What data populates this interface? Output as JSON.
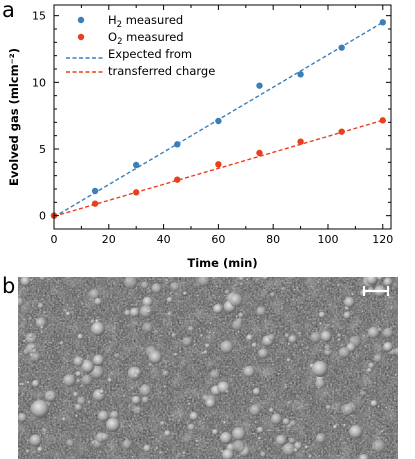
{
  "figure": {
    "panel_a_letter": "a",
    "panel_b_letter": "b"
  },
  "chart_data": {
    "type": "scatter",
    "title": "",
    "xlabel": "Time (min)",
    "ylabel": "Evolved gas (mlcm⁻²)",
    "xlim": [
      0,
      123
    ],
    "ylim": [
      -1,
      15.8
    ],
    "x_ticks": [
      0,
      20,
      40,
      60,
      80,
      100,
      120
    ],
    "y_ticks": [
      0,
      5,
      10,
      15
    ],
    "grid": false,
    "legend_position": "top-left",
    "series": [
      {
        "name": "H₂ measured",
        "mark": "point",
        "color": "#3b7fb8",
        "x": [
          0,
          15,
          30,
          45,
          60,
          75,
          90,
          105,
          120
        ],
        "y": [
          0.0,
          1.85,
          3.8,
          5.35,
          7.1,
          9.75,
          10.6,
          12.6,
          14.5
        ]
      },
      {
        "name": "O₂ measured",
        "mark": "point",
        "color": "#e8401c",
        "x": [
          0,
          15,
          30,
          45,
          60,
          75,
          90,
          105,
          120
        ],
        "y": [
          0.0,
          0.9,
          1.75,
          2.7,
          3.85,
          4.7,
          5.55,
          6.3,
          7.15
        ]
      },
      {
        "name": "Expected from transferred charge",
        "mark": "dashed-line",
        "color": "#3b7fb8",
        "x": [
          0,
          120
        ],
        "y": [
          -0.1,
          14.5
        ]
      },
      {
        "name": "",
        "mark": "dashed-line",
        "color": "#e8401c",
        "x": [
          0,
          120
        ],
        "y": [
          -0.05,
          7.15
        ]
      }
    ],
    "legend": {
      "h2_label_main": "H",
      "h2_label_sub": "2",
      "h2_label_rest": " measured",
      "o2_label_main": "O",
      "o2_label_sub": "2",
      "o2_label_rest": " measured",
      "expected_line1": "Expected from",
      "expected_line2": "transferred charge"
    }
  },
  "micrograph": {
    "description_icon": "sem-micrograph-image",
    "scale_bar_icon": "scale-bar-icon"
  }
}
